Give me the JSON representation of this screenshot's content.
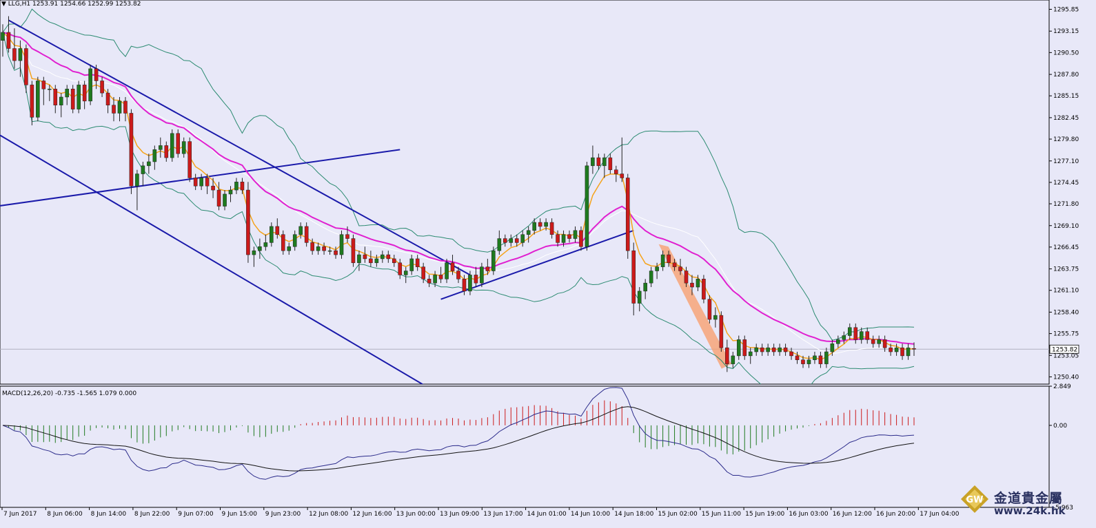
{
  "header": {
    "arrow_icon": "triangle-down-icon",
    "symbol_info": "LLG,H1  1253.91 1254.66 1252.99 1253.82"
  },
  "macd_label": "MACD(12,26,20) -0.735 -1.565 1.079 0.000",
  "colors": {
    "background": "#e8e8f8",
    "bull_candle": "#1f7a1f",
    "bear_candle": "#cc1a1a",
    "ema_fast": "#f5a31a",
    "ema_slow": "#e020d0",
    "bollinger": "#2a8a70",
    "trendline": "#1a1aaa",
    "highlight": "#f7a070",
    "macd_signal": "#111111",
    "macd_line": "#2a2a8a"
  },
  "logo": {
    "icon": "gw-logo-icon",
    "mark_text": "GW",
    "name": "金道貴金屬",
    "url": "www.24k.hk"
  },
  "chart_data": {
    "type": "candlestick",
    "symbol": "LLG",
    "timeframe": "H1",
    "last_bar": {
      "open": 1253.91,
      "high": 1254.66,
      "low": 1252.99,
      "close": 1253.82
    },
    "current_price_label": "1253.82",
    "price_axis": {
      "ylim": [
        1249.5,
        1297.0
      ],
      "ticks": [
        "1295.85",
        "1293.15",
        "1290.50",
        "1287.80",
        "1285.15",
        "1282.45",
        "1279.80",
        "1277.10",
        "1274.45",
        "1271.80",
        "1269.10",
        "1266.45",
        "1263.75",
        "1261.10",
        "1258.40",
        "1255.75",
        "1253.05",
        "1250.40"
      ]
    },
    "time_axis": {
      "ticks": [
        "7 Jun 2017",
        "8 Jun 06:00",
        "8 Jun 14:00",
        "8 Jun 22:00",
        "9 Jun 07:00",
        "9 Jun 15:00",
        "9 Jun 23:00",
        "12 Jun 08:00",
        "12 Jun 16:00",
        "13 Jun 00:00",
        "13 Jun 09:00",
        "13 Jun 17:00",
        "14 Jun 01:00",
        "14 Jun 10:00",
        "14 Jun 18:00",
        "15 Jun 02:00",
        "15 Jun 11:00",
        "15 Jun 19:00",
        "16 Jun 03:00",
        "16 Jun 12:00",
        "16 Jun 20:00",
        "17 Jun 04:00"
      ]
    },
    "candles": [
      [
        1292.0,
        1294.0,
        1290.0,
        1293.0
      ],
      [
        1293.0,
        1295.0,
        1290.5,
        1291.0
      ],
      [
        1291.0,
        1293.5,
        1288.5,
        1289.5
      ],
      [
        1289.5,
        1292.0,
        1287.5,
        1291.0
      ],
      [
        1291.0,
        1291.5,
        1285.5,
        1286.5
      ],
      [
        1286.5,
        1287.0,
        1281.5,
        1282.5
      ],
      [
        1282.5,
        1287.5,
        1282.0,
        1287.0
      ],
      [
        1287.0,
        1287.5,
        1284.0,
        1286.0
      ],
      [
        1286.0,
        1286.5,
        1284.5,
        1286.0
      ],
      [
        1286.0,
        1286.5,
        1283.0,
        1284.0
      ],
      [
        1284.0,
        1285.5,
        1282.5,
        1285.0
      ],
      [
        1285.0,
        1286.5,
        1284.0,
        1286.0
      ],
      [
        1286.0,
        1286.5,
        1283.0,
        1283.5
      ],
      [
        1283.5,
        1287.0,
        1283.0,
        1286.5
      ],
      [
        1286.5,
        1287.0,
        1283.5,
        1284.5
      ],
      [
        1284.5,
        1289.0,
        1284.0,
        1288.5
      ],
      [
        1288.5,
        1289.0,
        1286.0,
        1287.0
      ],
      [
        1287.0,
        1287.5,
        1285.0,
        1285.5
      ],
      [
        1285.5,
        1286.0,
        1283.0,
        1284.0
      ],
      [
        1284.0,
        1285.0,
        1282.0,
        1283.0
      ],
      [
        1283.0,
        1285.0,
        1282.0,
        1284.5
      ],
      [
        1284.5,
        1285.0,
        1282.0,
        1283.0
      ],
      [
        1283.0,
        1283.5,
        1273.0,
        1274.0
      ],
      [
        1274.0,
        1276.0,
        1271.0,
        1275.5
      ],
      [
        1275.5,
        1277.0,
        1274.0,
        1276.5
      ],
      [
        1276.5,
        1278.0,
        1275.5,
        1277.0
      ],
      [
        1277.0,
        1279.0,
        1276.0,
        1278.5
      ],
      [
        1278.5,
        1280.0,
        1277.5,
        1279.0
      ],
      [
        1279.0,
        1279.5,
        1277.0,
        1277.5
      ],
      [
        1277.5,
        1281.0,
        1277.0,
        1280.5
      ],
      [
        1280.5,
        1281.0,
        1277.5,
        1278.0
      ],
      [
        1278.0,
        1280.0,
        1277.5,
        1279.5
      ],
      [
        1279.5,
        1280.0,
        1274.5,
        1275.0
      ],
      [
        1275.0,
        1275.5,
        1273.5,
        1274.0
      ],
      [
        1274.0,
        1275.5,
        1273.5,
        1275.0
      ],
      [
        1275.0,
        1275.5,
        1273.0,
        1274.0
      ],
      [
        1274.0,
        1275.0,
        1272.5,
        1273.5
      ],
      [
        1273.5,
        1274.5,
        1271.0,
        1271.5
      ],
      [
        1271.5,
        1273.5,
        1271.0,
        1273.0
      ],
      [
        1273.0,
        1274.0,
        1272.0,
        1273.5
      ],
      [
        1273.5,
        1275.0,
        1273.0,
        1274.5
      ],
      [
        1274.5,
        1275.0,
        1273.0,
        1273.5
      ],
      [
        1273.5,
        1274.5,
        1264.5,
        1265.5
      ],
      [
        1265.5,
        1266.5,
        1264.0,
        1266.0
      ],
      [
        1266.0,
        1267.5,
        1265.0,
        1266.5
      ],
      [
        1266.5,
        1268.0,
        1266.0,
        1267.0
      ],
      [
        1267.0,
        1269.5,
        1266.5,
        1269.0
      ],
      [
        1269.0,
        1270.0,
        1267.5,
        1268.0
      ],
      [
        1268.0,
        1268.5,
        1265.5,
        1266.0
      ],
      [
        1266.0,
        1267.0,
        1265.5,
        1266.5
      ],
      [
        1266.5,
        1268.5,
        1266.0,
        1268.0
      ],
      [
        1268.0,
        1269.5,
        1267.5,
        1269.0
      ],
      [
        1269.0,
        1269.5,
        1266.5,
        1267.0
      ],
      [
        1267.0,
        1267.5,
        1265.5,
        1266.0
      ],
      [
        1266.0,
        1267.0,
        1265.5,
        1266.5
      ],
      [
        1266.5,
        1267.0,
        1265.5,
        1266.0
      ],
      [
        1266.0,
        1266.5,
        1265.5,
        1266.0
      ],
      [
        1266.0,
        1266.5,
        1265.0,
        1265.5
      ],
      [
        1265.5,
        1268.5,
        1265.0,
        1268.0
      ],
      [
        1268.0,
        1269.0,
        1267.0,
        1267.5
      ],
      [
        1267.5,
        1268.0,
        1264.0,
        1264.5
      ],
      [
        1264.5,
        1266.0,
        1263.5,
        1265.5
      ],
      [
        1265.5,
        1266.5,
        1264.5,
        1265.0
      ],
      [
        1265.0,
        1266.0,
        1264.0,
        1264.5
      ],
      [
        1264.5,
        1265.5,
        1264.0,
        1265.0
      ],
      [
        1265.0,
        1266.0,
        1264.5,
        1265.5
      ],
      [
        1265.5,
        1266.0,
        1264.5,
        1265.0
      ],
      [
        1265.0,
        1265.5,
        1264.0,
        1264.5
      ],
      [
        1264.5,
        1265.0,
        1262.5,
        1263.0
      ],
      [
        1263.0,
        1264.0,
        1262.0,
        1263.5
      ],
      [
        1263.5,
        1265.5,
        1263.0,
        1265.0
      ],
      [
        1265.0,
        1265.5,
        1263.5,
        1264.0
      ],
      [
        1264.0,
        1264.5,
        1262.0,
        1262.5
      ],
      [
        1262.5,
        1263.0,
        1261.5,
        1262.0
      ],
      [
        1262.0,
        1263.5,
        1261.5,
        1263.0
      ],
      [
        1263.0,
        1264.0,
        1262.0,
        1262.5
      ],
      [
        1262.5,
        1265.0,
        1262.0,
        1264.5
      ],
      [
        1264.5,
        1265.5,
        1263.0,
        1263.5
      ],
      [
        1263.5,
        1264.0,
        1262.0,
        1262.5
      ],
      [
        1262.5,
        1263.0,
        1260.5,
        1261.0
      ],
      [
        1261.0,
        1263.5,
        1260.5,
        1263.0
      ],
      [
        1263.0,
        1264.0,
        1261.5,
        1262.0
      ],
      [
        1262.0,
        1264.5,
        1261.5,
        1264.0
      ],
      [
        1264.0,
        1265.0,
        1263.0,
        1263.5
      ],
      [
        1263.5,
        1266.5,
        1263.0,
        1266.0
      ],
      [
        1266.0,
        1268.5,
        1265.5,
        1267.5
      ],
      [
        1267.5,
        1268.0,
        1266.5,
        1267.0
      ],
      [
        1267.0,
        1268.0,
        1266.5,
        1267.5
      ],
      [
        1267.5,
        1268.0,
        1266.5,
        1267.0
      ],
      [
        1267.0,
        1268.5,
        1266.5,
        1268.0
      ],
      [
        1268.0,
        1269.0,
        1267.0,
        1268.5
      ],
      [
        1268.5,
        1270.0,
        1268.0,
        1269.5
      ],
      [
        1269.5,
        1270.0,
        1268.5,
        1269.0
      ],
      [
        1269.0,
        1270.0,
        1268.5,
        1269.5
      ],
      [
        1269.5,
        1270.0,
        1267.5,
        1268.0
      ],
      [
        1268.0,
        1268.5,
        1266.5,
        1267.0
      ],
      [
        1267.0,
        1268.5,
        1266.5,
        1268.0
      ],
      [
        1268.0,
        1268.5,
        1267.0,
        1267.5
      ],
      [
        1267.5,
        1269.0,
        1267.0,
        1268.5
      ],
      [
        1268.5,
        1269.0,
        1266.0,
        1266.5
      ],
      [
        1266.5,
        1277.0,
        1266.0,
        1276.5
      ],
      [
        1276.5,
        1279.0,
        1275.5,
        1277.5
      ],
      [
        1277.5,
        1278.0,
        1276.0,
        1276.5
      ],
      [
        1276.5,
        1278.0,
        1275.0,
        1277.5
      ],
      [
        1277.5,
        1278.0,
        1275.5,
        1276.0
      ],
      [
        1276.0,
        1276.5,
        1274.5,
        1275.5
      ],
      [
        1275.5,
        1280.0,
        1274.5,
        1275.0
      ],
      [
        1275.0,
        1275.5,
        1265.0,
        1266.0
      ],
      [
        1266.0,
        1267.0,
        1258.0,
        1259.5
      ],
      [
        1259.5,
        1261.5,
        1258.5,
        1261.0
      ],
      [
        1261.0,
        1262.5,
        1260.0,
        1262.0
      ],
      [
        1262.0,
        1264.0,
        1261.5,
        1263.5
      ],
      [
        1263.5,
        1264.5,
        1262.5,
        1264.0
      ],
      [
        1264.0,
        1266.0,
        1263.5,
        1265.5
      ],
      [
        1265.5,
        1266.0,
        1264.0,
        1264.5
      ],
      [
        1264.5,
        1265.0,
        1263.5,
        1264.0
      ],
      [
        1264.0,
        1265.0,
        1263.0,
        1263.5
      ],
      [
        1263.5,
        1264.0,
        1261.5,
        1262.0
      ],
      [
        1262.0,
        1263.0,
        1260.5,
        1261.5
      ],
      [
        1261.5,
        1263.0,
        1261.0,
        1262.5
      ],
      [
        1262.5,
        1263.0,
        1259.5,
        1260.0
      ],
      [
        1260.0,
        1260.5,
        1257.0,
        1257.5
      ],
      [
        1257.5,
        1259.0,
        1256.5,
        1258.0
      ],
      [
        1258.0,
        1258.5,
        1253.5,
        1254.0
      ],
      [
        1254.0,
        1255.0,
        1251.0,
        1252.0
      ],
      [
        1252.0,
        1253.5,
        1251.5,
        1253.0
      ],
      [
        1253.0,
        1255.5,
        1252.5,
        1255.0
      ],
      [
        1255.0,
        1255.5,
        1252.5,
        1253.0
      ],
      [
        1253.0,
        1254.0,
        1252.0,
        1253.5
      ],
      [
        1253.5,
        1254.5,
        1253.0,
        1254.0
      ],
      [
        1254.0,
        1254.5,
        1253.0,
        1253.5
      ],
      [
        1253.5,
        1254.5,
        1253.0,
        1254.0
      ],
      [
        1254.0,
        1254.5,
        1253.0,
        1253.5
      ],
      [
        1253.5,
        1254.5,
        1253.0,
        1254.0
      ],
      [
        1254.0,
        1254.5,
        1253.0,
        1253.5
      ],
      [
        1253.5,
        1254.0,
        1252.5,
        1253.0
      ],
      [
        1253.0,
        1253.5,
        1252.0,
        1252.5
      ],
      [
        1252.5,
        1253.0,
        1251.5,
        1252.0
      ],
      [
        1252.0,
        1253.0,
        1251.5,
        1252.5
      ],
      [
        1252.5,
        1253.5,
        1252.0,
        1253.0
      ],
      [
        1253.0,
        1253.5,
        1251.5,
        1252.0
      ],
      [
        1252.0,
        1254.0,
        1251.5,
        1253.5
      ],
      [
        1253.5,
        1255.0,
        1253.0,
        1254.5
      ],
      [
        1254.5,
        1255.5,
        1254.0,
        1255.0
      ],
      [
        1255.0,
        1256.0,
        1254.5,
        1255.5
      ],
      [
        1255.5,
        1257.0,
        1255.0,
        1256.5
      ],
      [
        1256.5,
        1257.0,
        1254.5,
        1255.0
      ],
      [
        1255.0,
        1256.5,
        1254.5,
        1256.0
      ],
      [
        1256.0,
        1256.5,
        1254.5,
        1255.0
      ],
      [
        1255.0,
        1255.5,
        1254.0,
        1254.5
      ],
      [
        1254.5,
        1255.5,
        1254.0,
        1255.0
      ],
      [
        1255.0,
        1255.5,
        1253.5,
        1254.0
      ],
      [
        1254.0,
        1254.5,
        1253.0,
        1253.5
      ],
      [
        1253.5,
        1254.5,
        1253.0,
        1254.0
      ],
      [
        1254.0,
        1254.5,
        1252.5,
        1253.0
      ],
      [
        1253.0,
        1254.5,
        1252.5,
        1254.0
      ],
      [
        1253.91,
        1254.66,
        1252.99,
        1253.82
      ]
    ],
    "indicators": [
      {
        "name": "EMA fast (orange)",
        "color": "#f5a31a"
      },
      {
        "name": "EMA slow (magenta)",
        "color": "#e020d0"
      },
      {
        "name": "Bollinger Bands",
        "color": "#2a8a70"
      }
    ],
    "macd": {
      "params": "12,26,20",
      "values": [
        -0.735,
        -1.565,
        1.079,
        0.0
      ],
      "ylim": [
        -5.963,
        2.849
      ],
      "ticks": [
        "2.849",
        "0.00",
        "-5.963"
      ]
    }
  }
}
